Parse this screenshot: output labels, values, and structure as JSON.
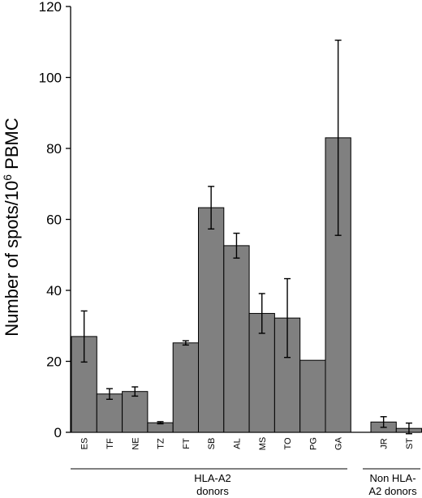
{
  "chart_data": {
    "type": "bar",
    "ylabel_main": "Number of spots/10",
    "ylabel_sup": "6",
    "ylabel_tail": " PBMC",
    "ylim": [
      0,
      120
    ],
    "yticks": [
      0,
      20,
      40,
      60,
      80,
      100,
      120
    ],
    "grid": false,
    "categories": [
      "ES",
      "TF",
      "NE",
      "TZ",
      "FT",
      "SB",
      "AL",
      "MS",
      "TO",
      "PG",
      "GA",
      "JR",
      "ST"
    ],
    "values": [
      27,
      10.8,
      11.5,
      2.7,
      25.2,
      63.3,
      52.6,
      33.5,
      32.2,
      20.3,
      83.0,
      2.9,
      1.1
    ],
    "error": [
      7.2,
      1.5,
      1.3,
      0.3,
      0.6,
      6.0,
      3.5,
      5.6,
      11.1,
      0,
      27.5,
      1.5,
      1.5
    ],
    "groups": [
      {
        "label_lines": [
          "HLA-A2",
          "donors"
        ],
        "categories": [
          "ES",
          "TF",
          "NE",
          "TZ",
          "FT",
          "SB",
          "AL",
          "MS",
          "TO",
          "PG",
          "GA"
        ]
      },
      {
        "label_lines": [
          "Non HLA-",
          "A2 donors"
        ],
        "categories": [
          "JR",
          "ST"
        ]
      }
    ],
    "bar_color": "#808080"
  }
}
